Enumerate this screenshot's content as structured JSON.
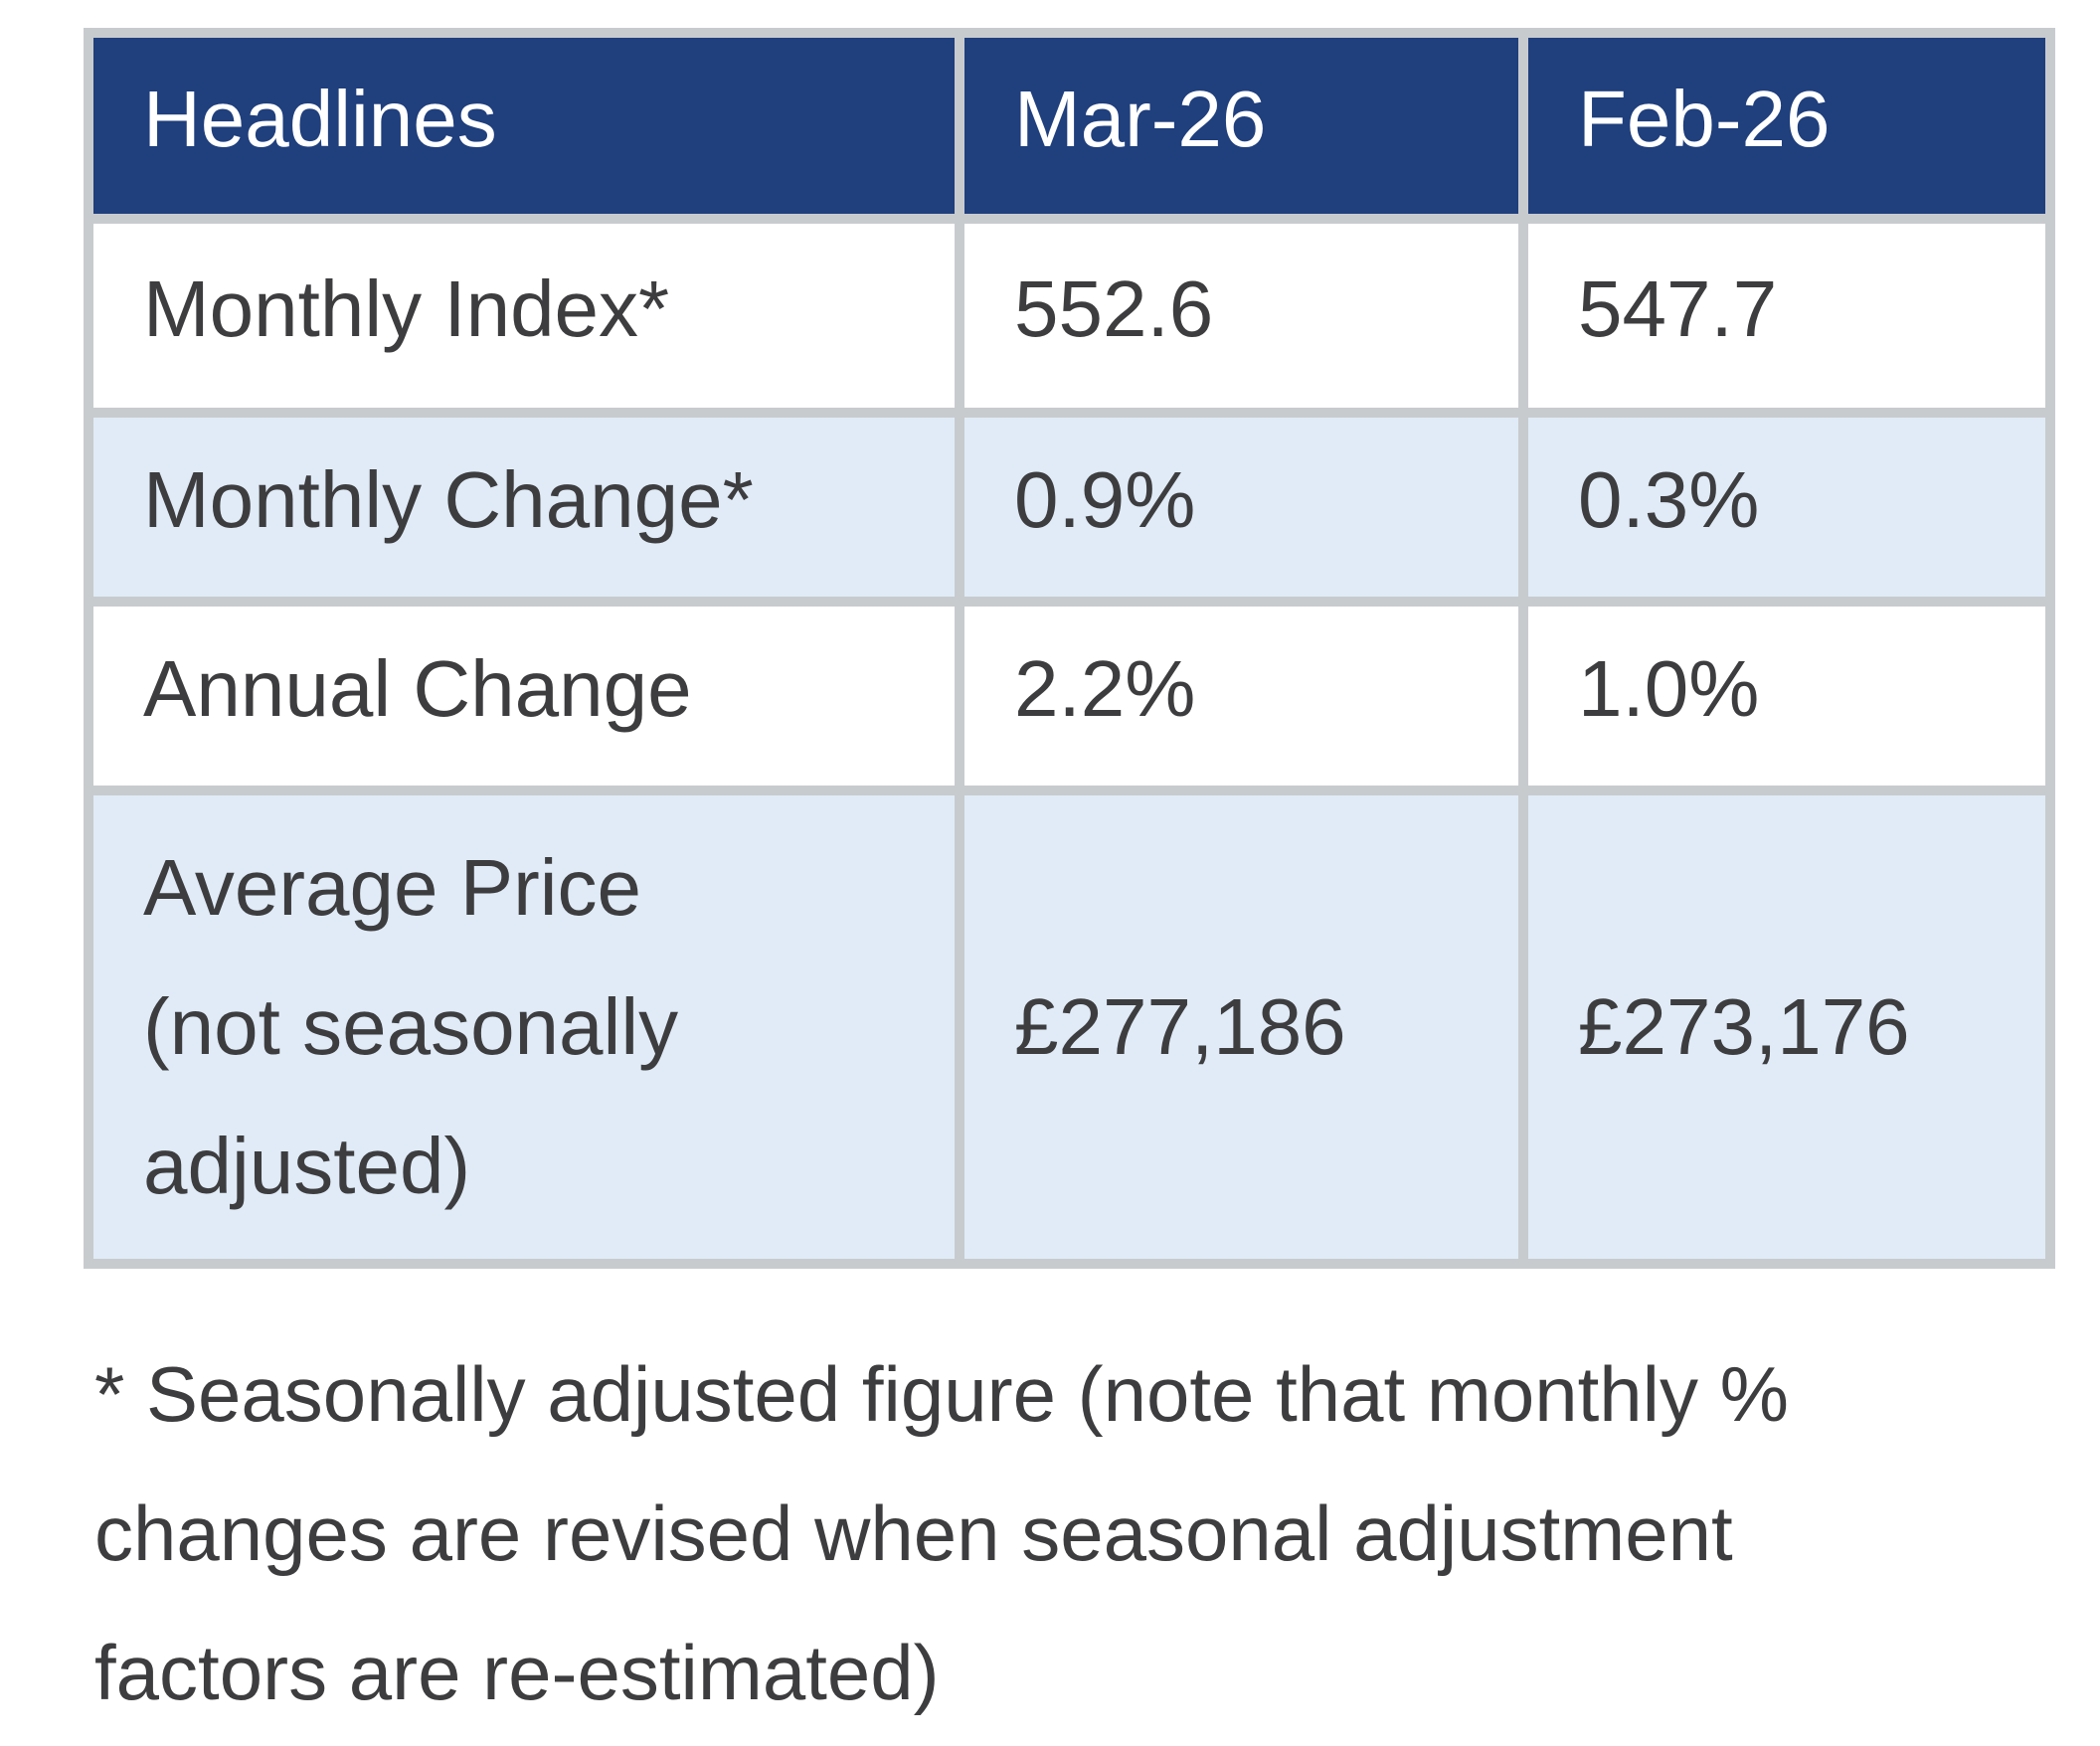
{
  "colors": {
    "header_background": "#1f3f7d",
    "header_text": "#ffffff",
    "shaded_row_background": "#e0ebf7",
    "plain_row_background": "#ffffff",
    "border": "#c8cbce",
    "body_text": "#3d3d3f"
  },
  "table": {
    "columns": [
      "Headlines",
      "Mar-26",
      "Feb-26"
    ],
    "rows": [
      {
        "label_lines": [
          "Monthly Index*"
        ],
        "values": [
          "552.6",
          "547.7"
        ],
        "shaded": false
      },
      {
        "label_lines": [
          "Monthly Change*"
        ],
        "values": [
          "0.9%",
          "0.3%"
        ],
        "shaded": true
      },
      {
        "label_lines": [
          "Annual Change"
        ],
        "values": [
          "2.2%",
          "1.0%"
        ],
        "shaded": false
      },
      {
        "label_lines": [
          "Average Price",
          "(not seasonally",
          "adjusted)"
        ],
        "values": [
          "£277,186",
          "£273,176"
        ],
        "shaded": true
      }
    ]
  },
  "footnote": {
    "lines": [
      "* Seasonally adjusted figure (note that monthly %",
      "changes are revised when seasonal adjustment",
      "factors are re-estimated)"
    ]
  }
}
